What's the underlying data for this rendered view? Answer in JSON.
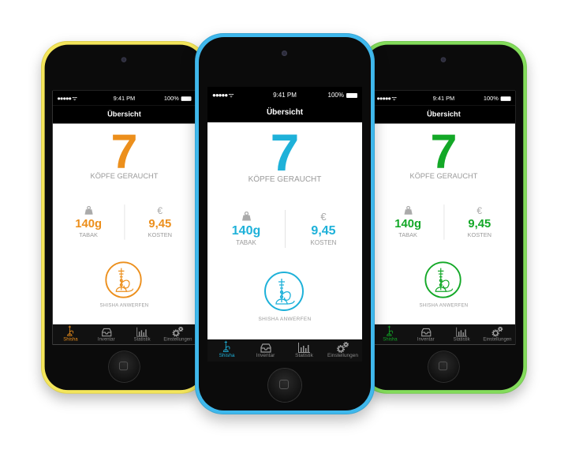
{
  "phones": [
    {
      "variant": "yellow",
      "body_color": "#f4e65b",
      "accent": "#ec8f1c"
    },
    {
      "variant": "blue",
      "body_color": "#3fb8ec",
      "accent": "#1eb1d9"
    },
    {
      "variant": "green",
      "body_color": "#83dc5b",
      "accent": "#13a827"
    }
  ],
  "status": {
    "signal": "●●●●● ᯤ",
    "time": "9:41 PM",
    "battery": "100%"
  },
  "nav": {
    "title": "Übersicht"
  },
  "summary": {
    "count": "7",
    "count_label": "KÖPFE GERAUCHT"
  },
  "stats": {
    "tabak": {
      "icon": "weight-icon",
      "value": "140g",
      "label": "TABAK"
    },
    "kosten": {
      "icon": "euro-icon",
      "symbol": "€",
      "value": "9,45",
      "label": "KOSTEN"
    }
  },
  "launch": {
    "icon": "hookah-icon",
    "label": "SHISHA ANWERFEN"
  },
  "tabs": [
    {
      "label": "Shisha",
      "icon": "hookah-icon",
      "active": true
    },
    {
      "label": "Inventar",
      "icon": "inbox-icon"
    },
    {
      "label": "Statistik",
      "icon": "bar-chart-icon"
    },
    {
      "label": "Einstellungen",
      "icon": "gears-icon"
    }
  ]
}
